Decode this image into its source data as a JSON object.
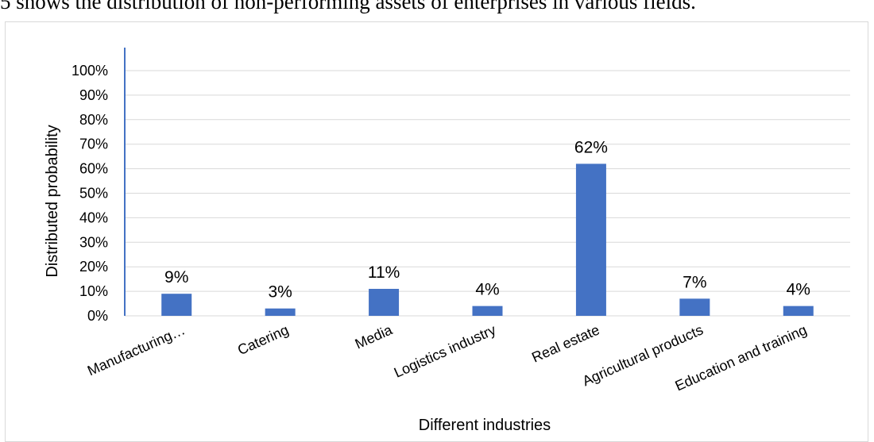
{
  "intro_text": "5 shows the distribution of non-performing assets of enterprises in various fields.",
  "chart_data": {
    "type": "bar",
    "categories": [
      "Manufacturing…",
      "Catering",
      "Media",
      "Logistics industry",
      "Real estate",
      "Agricultural products",
      "Education and training"
    ],
    "values": [
      9,
      3,
      11,
      4,
      62,
      7,
      4
    ],
    "data_labels": [
      "9%",
      "3%",
      "11%",
      "4%",
      "62%",
      "7%",
      "4%"
    ],
    "title": "",
    "xlabel": "Different industries",
    "ylabel": "Distributed probability",
    "ylim": [
      0,
      100
    ],
    "yticks": [
      "0%",
      "10%",
      "20%",
      "30%",
      "40%",
      "50%",
      "60%",
      "70%",
      "80%",
      "90%",
      "100%"
    ],
    "grid": true,
    "bar_color": "#4472c4",
    "grid_color": "#d9d9d9",
    "axis_color": "#4472c4"
  }
}
